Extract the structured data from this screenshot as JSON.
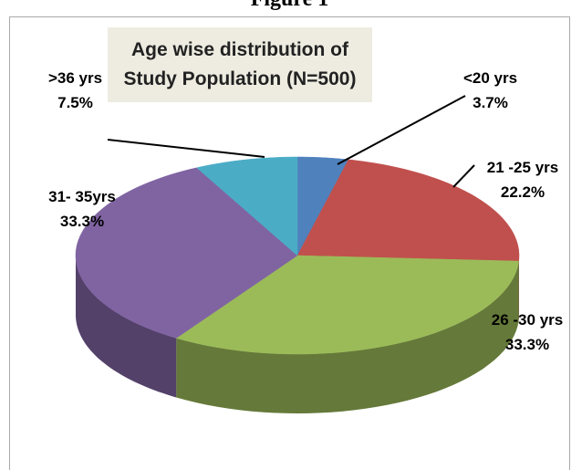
{
  "figure_label": "Figure 1",
  "chart_data": {
    "type": "pie",
    "title": "Age wise distribution of Study Population (N=500)",
    "categories": [
      "<20 yrs",
      "21 -25 yrs",
      "26 -30 yrs",
      "31- 35yrs",
      ">36 yrs"
    ],
    "values": [
      3.7,
      22.2,
      33.3,
      33.3,
      7.5
    ],
    "value_labels": [
      "3.7%",
      "22.2%",
      "33.3%",
      "33.3%",
      "7.5%"
    ],
    "colors": [
      "#4f81bd",
      "#c0504d",
      "#9bbb59",
      "#8064a2",
      "#4bacc6"
    ]
  }
}
